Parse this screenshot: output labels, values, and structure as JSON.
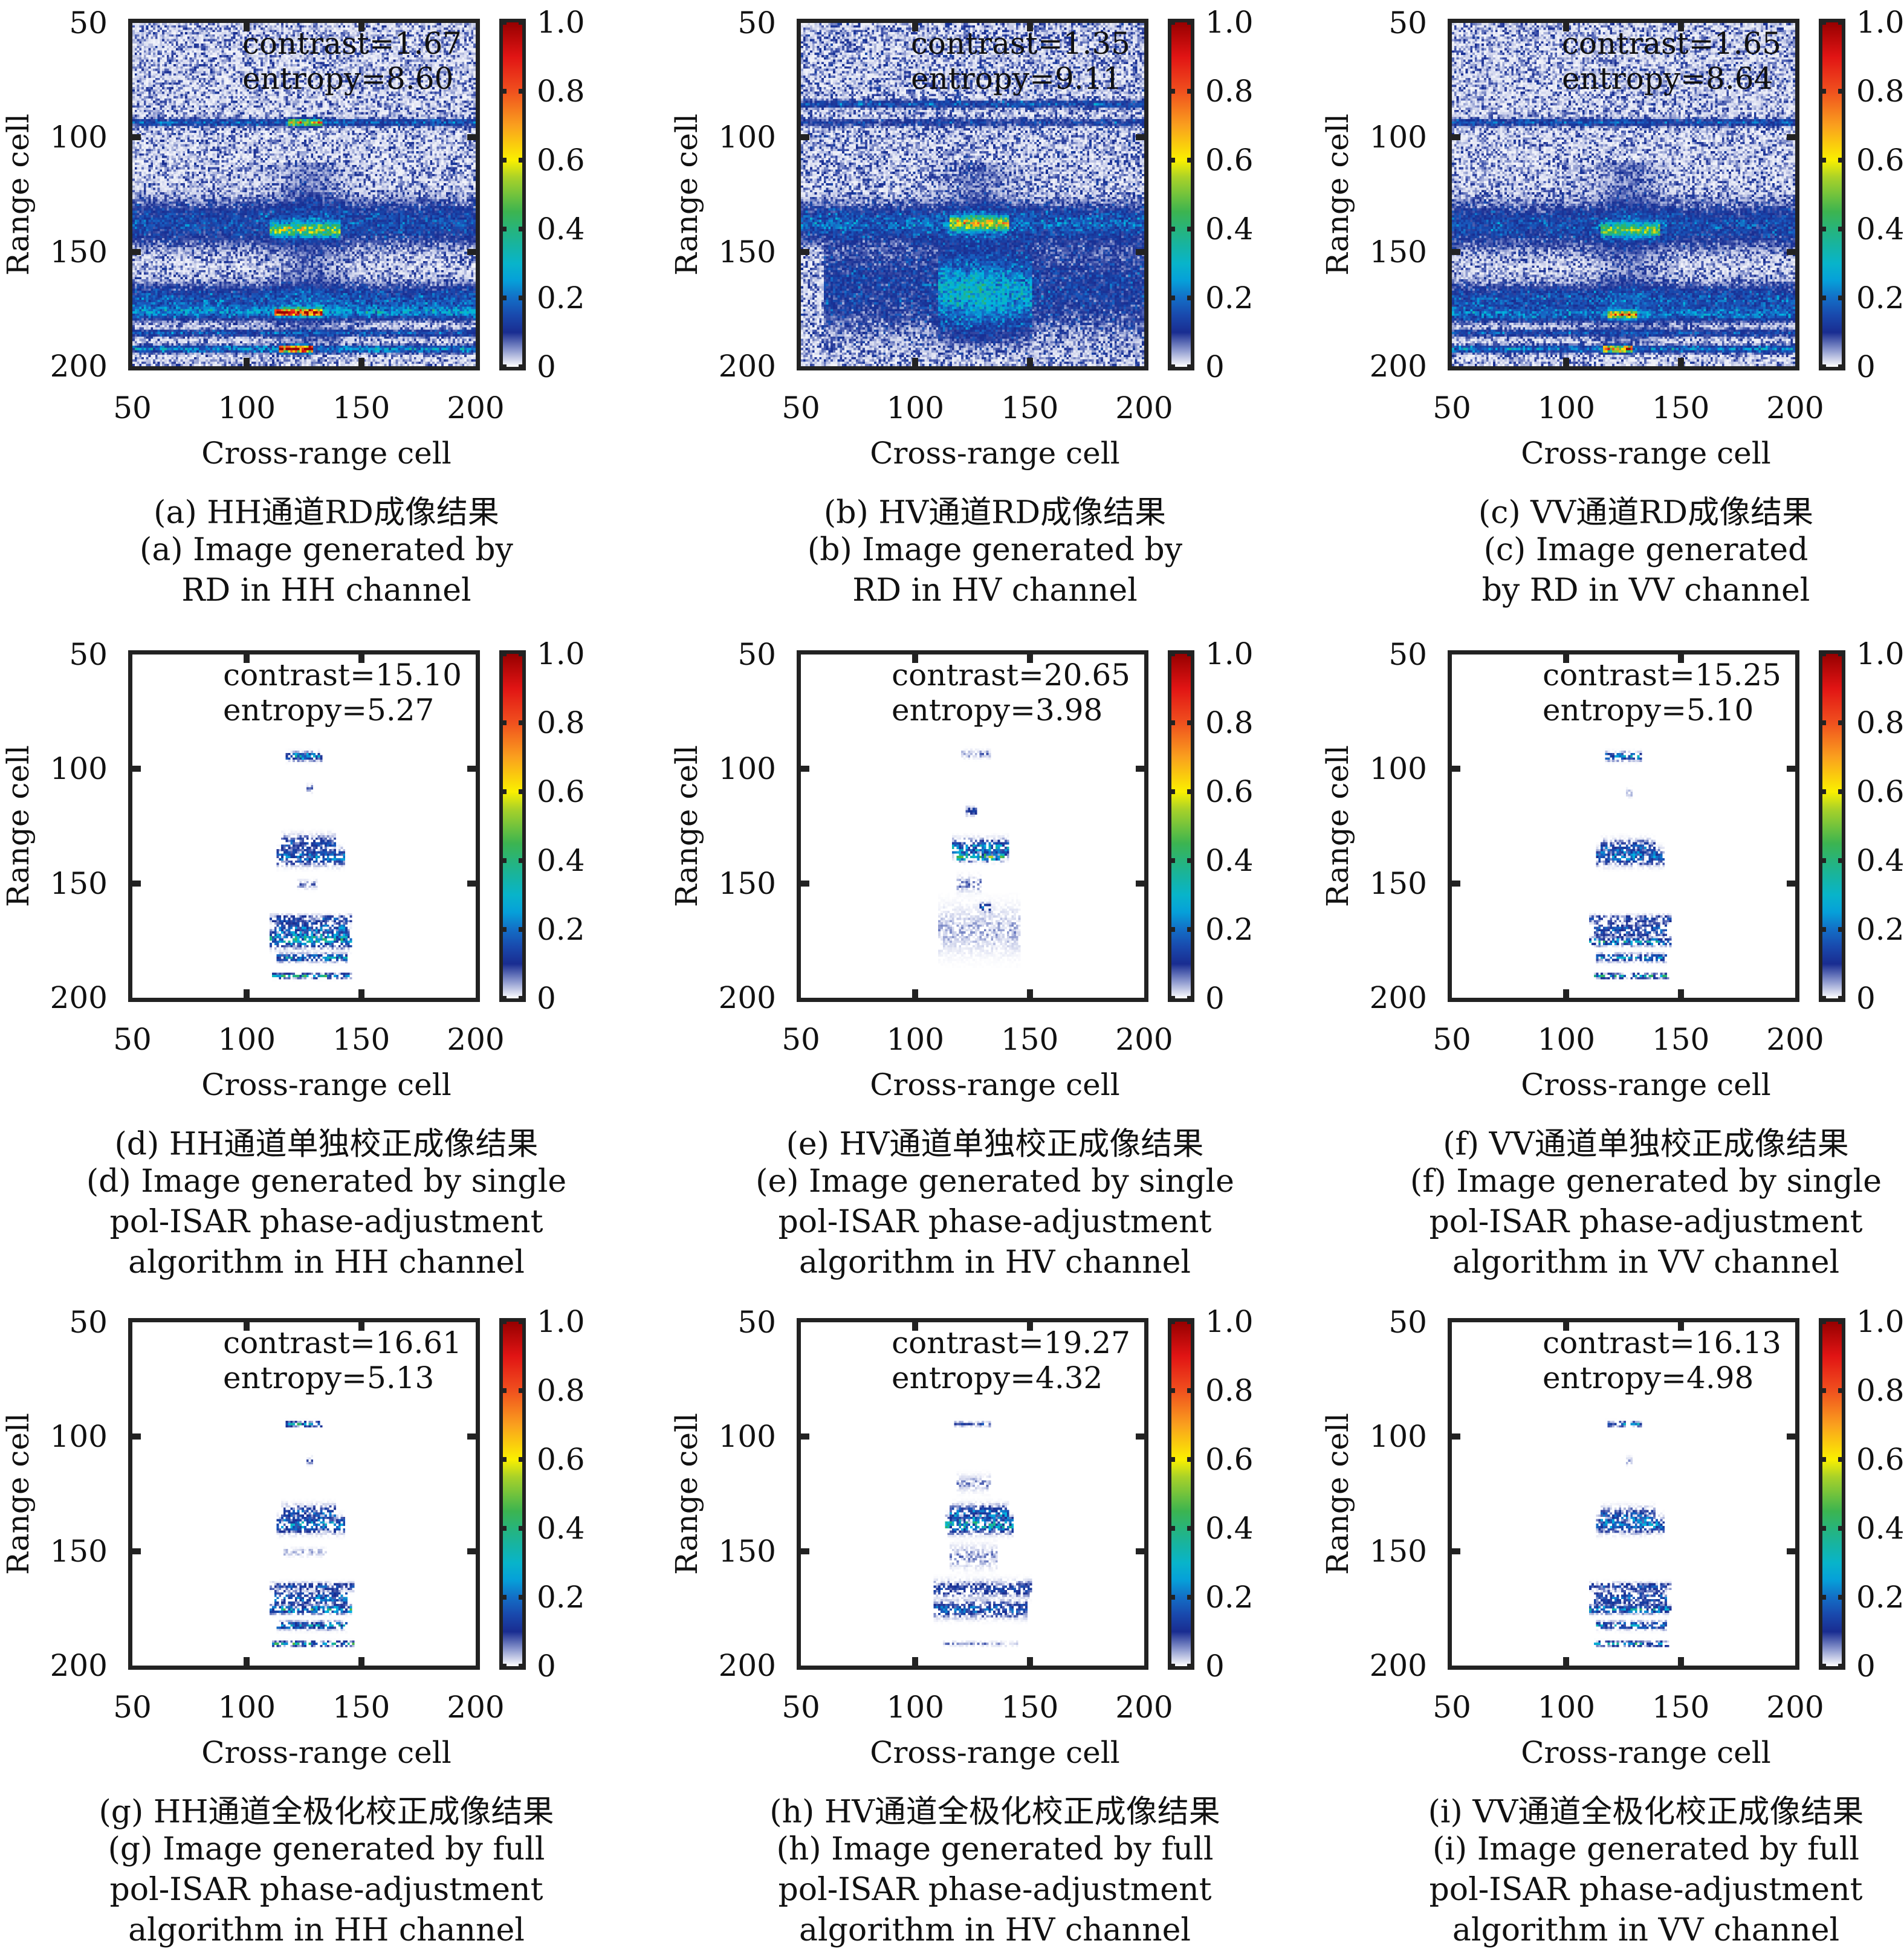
{
  "chart_data": {
    "type": "heatmap",
    "shared": {
      "xlabel": "Cross-range cell",
      "ylabel": "Range cell",
      "xlim": [
        50,
        200
      ],
      "ylim": [
        50,
        200
      ],
      "xticks": [
        "50",
        "100",
        "150",
        "200"
      ],
      "yticks": [
        "50",
        "100",
        "150",
        "200"
      ],
      "colorbar": {
        "range": [
          0,
          1
        ],
        "ticks": [
          "0",
          "0.2",
          "0.4",
          "0.6",
          "0.8",
          "1.0"
        ]
      },
      "colormap": "jet-white"
    },
    "panels": [
      {
        "id": "a",
        "contrast": "contrast=1.67",
        "entropy": "entropy=8.60",
        "caption": [
          "(a) HH通道RD成像结果",
          "(a) Image generated by",
          "RD in HH channel"
        ],
        "mode": "rd",
        "background": 0.035,
        "features": [
          {
            "range": 93,
            "cross": [
              50,
              200
            ],
            "level": 0.14,
            "spread": 1
          },
          {
            "range": 93,
            "cross": [
              118,
              132
            ],
            "level": 0.45,
            "spread": 1
          },
          {
            "range": 137,
            "cross": [
              50,
              200
            ],
            "level": 0.11,
            "spread": 6
          },
          {
            "range": 140,
            "cross": [
              110,
              140
            ],
            "level": 0.35,
            "spread": 2
          },
          {
            "range": 170,
            "cross": [
              50,
              200
            ],
            "level": 0.12,
            "spread": 4
          },
          {
            "range": 176,
            "cross": [
              50,
              200
            ],
            "level": 0.16,
            "spread": 2
          },
          {
            "range": 176,
            "cross": [
              112,
              132
            ],
            "level": 0.75,
            "spread": 1
          },
          {
            "range": 185,
            "cross": [
              50,
              200
            ],
            "level": 0.12,
            "spread": 1
          },
          {
            "range": 192,
            "cross": [
              50,
              200
            ],
            "level": 0.2,
            "spread": 1
          },
          {
            "range": 192,
            "cross": [
              114,
              128
            ],
            "level": 0.9,
            "spread": 1
          }
        ]
      },
      {
        "id": "b",
        "contrast": "contrast=1.35",
        "entropy": "entropy=9.11",
        "caption": [
          "(b) HV通道RD成像结果",
          "(b) Image generated by",
          "RD in HV channel"
        ],
        "mode": "rd",
        "background": 0.04,
        "features": [
          {
            "range": 85,
            "cross": [
              50,
              200
            ],
            "level": 0.12,
            "spread": 1
          },
          {
            "range": 93,
            "cross": [
              50,
              200
            ],
            "level": 0.08,
            "spread": 1
          },
          {
            "range": 137,
            "cross": [
              50,
              200
            ],
            "level": 0.13,
            "spread": 5
          },
          {
            "range": 137,
            "cross": [
              115,
              140
            ],
            "level": 0.4,
            "spread": 2
          },
          {
            "range": 165,
            "cross": [
              60,
              200
            ],
            "level": 0.08,
            "spread": 12
          },
          {
            "range": 168,
            "cross": [
              110,
              150
            ],
            "level": 0.14,
            "spread": 10
          }
        ]
      },
      {
        "id": "c",
        "contrast": "contrast=1.65",
        "entropy": "entropy=8.64",
        "caption": [
          "(c) VV通道RD成像结果",
          "(c) Image generated",
          "by RD in VV channel"
        ],
        "mode": "rd",
        "background": 0.035,
        "features": [
          {
            "range": 93,
            "cross": [
              50,
              200
            ],
            "level": 0.13,
            "spread": 1
          },
          {
            "range": 138,
            "cross": [
              50,
              200
            ],
            "level": 0.11,
            "spread": 6
          },
          {
            "range": 140,
            "cross": [
              115,
              140
            ],
            "level": 0.3,
            "spread": 2
          },
          {
            "range": 170,
            "cross": [
              50,
              200
            ],
            "level": 0.12,
            "spread": 4
          },
          {
            "range": 177,
            "cross": [
              50,
              200
            ],
            "level": 0.14,
            "spread": 2
          },
          {
            "range": 177,
            "cross": [
              118,
              130
            ],
            "level": 0.55,
            "spread": 1
          },
          {
            "range": 185,
            "cross": [
              50,
              200
            ],
            "level": 0.11,
            "spread": 1
          },
          {
            "range": 192,
            "cross": [
              50,
              200
            ],
            "level": 0.18,
            "spread": 1
          },
          {
            "range": 192,
            "cross": [
              116,
              128
            ],
            "level": 0.6,
            "spread": 1
          }
        ]
      },
      {
        "id": "d",
        "contrast": "contrast=15.10",
        "entropy": "entropy=5.27",
        "caption": [
          "(d) HH通道单独校正成像结果",
          "(d) Image generated by single",
          "pol-ISAR phase-adjustment",
          "algorithm in HH channel"
        ],
        "mode": "focused",
        "background": 0,
        "features": [
          {
            "range": 94,
            "cross": [
              117,
              132
            ],
            "level": 0.3,
            "spread": 1
          },
          {
            "range": 108,
            "cross": [
              126,
              128
            ],
            "level": 0.06,
            "spread": 1
          },
          {
            "range": 132,
            "cross": [
              115,
              138
            ],
            "level": 0.15,
            "spread": 2
          },
          {
            "range": 138,
            "cross": [
              113,
              142
            ],
            "level": 0.2,
            "spread": 2
          },
          {
            "range": 150,
            "cross": [
              122,
              130
            ],
            "level": 0.07,
            "spread": 1
          },
          {
            "range": 165,
            "cross": [
              110,
              145
            ],
            "level": 0.13,
            "spread": 1
          },
          {
            "range": 169,
            "cross": [
              112,
              143
            ],
            "level": 0.18,
            "spread": 2
          },
          {
            "range": 174,
            "cross": [
              110,
              145
            ],
            "level": 0.3,
            "spread": 2
          },
          {
            "range": 182,
            "cross": [
              113,
              143
            ],
            "level": 0.25,
            "spread": 1
          },
          {
            "range": 190,
            "cross": [
              111,
              145
            ],
            "level": 0.32,
            "spread": 0
          }
        ]
      },
      {
        "id": "e",
        "contrast": "contrast=20.65",
        "entropy": "entropy=3.98",
        "caption": [
          "(e) HV通道单独校正成像结果",
          "(e) Image generated by single",
          "pol-ISAR phase-adjustment",
          "algorithm in HV channel"
        ],
        "mode": "focused",
        "background": 0,
        "features": [
          {
            "range": 93,
            "cross": [
              120,
              132
            ],
            "level": 0.06,
            "spread": 1
          },
          {
            "range": 118,
            "cross": [
              122,
              126
            ],
            "level": 0.15,
            "spread": 1
          },
          {
            "range": 134,
            "cross": [
              116,
              140
            ],
            "level": 0.25,
            "spread": 2
          },
          {
            "range": 138,
            "cross": [
              118,
              138
            ],
            "level": 0.4,
            "spread": 1
          },
          {
            "range": 150,
            "cross": [
              118,
              128
            ],
            "level": 0.06,
            "spread": 2
          },
          {
            "range": 160,
            "cross": [
              128,
              132
            ],
            "level": 0.2,
            "spread": 1
          },
          {
            "range": 170,
            "cross": [
              110,
              145
            ],
            "level": 0.04,
            "spread": 6
          }
        ]
      },
      {
        "id": "f",
        "contrast": "contrast=15.25",
        "entropy": "entropy=5.10",
        "caption": [
          "(f) VV通道单独校正成像结果",
          "(f) Image generated by single",
          "pol-ISAR phase-adjustment",
          "algorithm in VV channel"
        ],
        "mode": "focused",
        "background": 0,
        "features": [
          {
            "range": 94,
            "cross": [
              117,
              132
            ],
            "level": 0.25,
            "spread": 1
          },
          {
            "range": 110,
            "cross": [
              126,
              128
            ],
            "level": 0.05,
            "spread": 1
          },
          {
            "range": 134,
            "cross": [
              115,
              138
            ],
            "level": 0.15,
            "spread": 2
          },
          {
            "range": 138,
            "cross": [
              113,
              142
            ],
            "level": 0.18,
            "spread": 2
          },
          {
            "range": 165,
            "cross": [
              110,
              145
            ],
            "level": 0.12,
            "spread": 1
          },
          {
            "range": 170,
            "cross": [
              112,
              143
            ],
            "level": 0.16,
            "spread": 2
          },
          {
            "range": 175,
            "cross": [
              110,
              145
            ],
            "level": 0.28,
            "spread": 1
          },
          {
            "range": 182,
            "cross": [
              113,
              143
            ],
            "level": 0.22,
            "spread": 1
          },
          {
            "range": 190,
            "cross": [
              112,
              144
            ],
            "level": 0.3,
            "spread": 0
          }
        ]
      },
      {
        "id": "g",
        "contrast": "contrast=16.61",
        "entropy": "entropy=5.13",
        "caption": [
          "(g) HH通道全极化校正成像结果",
          "(g) Image generated by full",
          "pol-ISAR phase-adjustment",
          "algorithm in HH channel"
        ],
        "mode": "focused",
        "background": 0,
        "features": [
          {
            "range": 94,
            "cross": [
              117,
              132
            ],
            "level": 0.3,
            "spread": 0
          },
          {
            "range": 110,
            "cross": [
              126,
              128
            ],
            "level": 0.06,
            "spread": 1
          },
          {
            "range": 133,
            "cross": [
              115,
              138
            ],
            "level": 0.16,
            "spread": 2
          },
          {
            "range": 138,
            "cross": [
              113,
              142
            ],
            "level": 0.22,
            "spread": 2
          },
          {
            "range": 150,
            "cross": [
              116,
              134
            ],
            "level": 0.05,
            "spread": 1
          },
          {
            "range": 165,
            "cross": [
              110,
              146
            ],
            "level": 0.14,
            "spread": 1
          },
          {
            "range": 170,
            "cross": [
              112,
              143
            ],
            "level": 0.18,
            "spread": 2
          },
          {
            "range": 175,
            "cross": [
              110,
              145
            ],
            "level": 0.32,
            "spread": 1
          },
          {
            "range": 182,
            "cross": [
              113,
              143
            ],
            "level": 0.25,
            "spread": 1
          },
          {
            "range": 190,
            "cross": [
              111,
              146
            ],
            "level": 0.33,
            "spread": 0
          }
        ]
      },
      {
        "id": "h",
        "contrast": "contrast=19.27",
        "entropy": "entropy=4.32",
        "caption": [
          "(h) HV通道全极化校正成像结果",
          "(h) Image generated by full",
          "pol-ISAR phase-adjustment",
          "algorithm in HV channel"
        ],
        "mode": "focused",
        "background": 0,
        "features": [
          {
            "range": 94,
            "cross": [
              117,
              132
            ],
            "level": 0.12,
            "spread": 0
          },
          {
            "range": 120,
            "cross": [
              118,
              132
            ],
            "level": 0.05,
            "spread": 2
          },
          {
            "range": 133,
            "cross": [
              115,
              140
            ],
            "level": 0.2,
            "spread": 2
          },
          {
            "range": 138,
            "cross": [
              113,
              142
            ],
            "level": 0.3,
            "spread": 2
          },
          {
            "range": 152,
            "cross": [
              115,
              135
            ],
            "level": 0.05,
            "spread": 3
          },
          {
            "range": 166,
            "cross": [
              108,
              150
            ],
            "level": 0.12,
            "spread": 2
          },
          {
            "range": 175,
            "cross": [
              108,
              148
            ],
            "level": 0.18,
            "spread": 2
          },
          {
            "range": 190,
            "cross": [
              112,
              144
            ],
            "level": 0.05,
            "spread": 0
          }
        ]
      },
      {
        "id": "i",
        "contrast": "contrast=16.13",
        "entropy": "entropy=4.98",
        "caption": [
          "(i) VV通道全极化校正成像结果",
          "(i) Image generated by full",
          "pol-ISAR phase-adjustment",
          "algorithm in VV channel"
        ],
        "mode": "focused",
        "background": 0,
        "features": [
          {
            "range": 94,
            "cross": [
              117,
              132
            ],
            "level": 0.22,
            "spread": 0
          },
          {
            "range": 110,
            "cross": [
              126,
              128
            ],
            "level": 0.05,
            "spread": 1
          },
          {
            "range": 134,
            "cross": [
              115,
              138
            ],
            "level": 0.15,
            "spread": 2
          },
          {
            "range": 138,
            "cross": [
              113,
              142
            ],
            "level": 0.2,
            "spread": 2
          },
          {
            "range": 165,
            "cross": [
              110,
              145
            ],
            "level": 0.13,
            "spread": 1
          },
          {
            "range": 170,
            "cross": [
              112,
              143
            ],
            "level": 0.16,
            "spread": 2
          },
          {
            "range": 175,
            "cross": [
              110,
              145
            ],
            "level": 0.28,
            "spread": 1
          },
          {
            "range": 182,
            "cross": [
              113,
              143
            ],
            "level": 0.22,
            "spread": 1
          },
          {
            "range": 190,
            "cross": [
              112,
              144
            ],
            "level": 0.3,
            "spread": 0
          }
        ]
      }
    ]
  }
}
